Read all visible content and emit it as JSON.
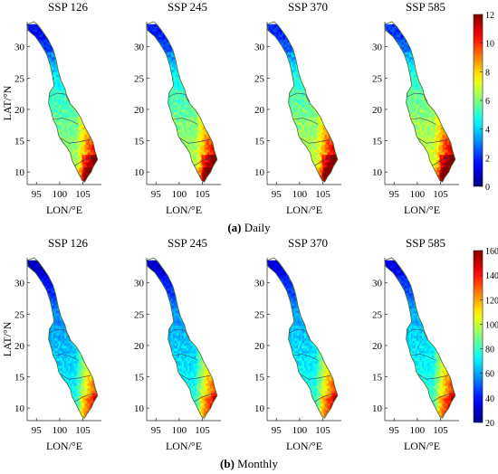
{
  "figure": {
    "rows": [
      {
        "id": "daily",
        "caption_letter": "(a)",
        "caption_text": " Daily",
        "panel_titles": [
          "SSP 126",
          "SSP 245",
          "SSP 370",
          "SSP 585"
        ],
        "colorbar": {
          "min": 0,
          "max": 12,
          "ticks": [
            "0",
            "2",
            "4",
            "6",
            "8",
            "10",
            "12"
          ]
        }
      },
      {
        "id": "monthly",
        "caption_letter": "(b)",
        "caption_text": " Monthly",
        "panel_titles": [
          "SSP 126",
          "SSP 245",
          "SSP 370",
          "SSP 585"
        ],
        "colorbar": {
          "min": 20,
          "max": 160,
          "ticks": [
            "20",
            "40",
            "60",
            "80",
            "100",
            "120",
            "140",
            "160"
          ]
        }
      }
    ],
    "axes": {
      "xlabel": "LON/°E",
      "ylabel": "LAT/°N",
      "xticks": [
        "95",
        "100",
        "105"
      ],
      "yticks": [
        "10",
        "15",
        "20",
        "25",
        "30"
      ],
      "xlim": [
        93,
        109
      ],
      "ylim": [
        8,
        34
      ]
    }
  },
  "chart_data": [
    {
      "type": "heatmap",
      "title": "SSP 126",
      "caption": "(a) Daily",
      "xlabel": "LON/°E",
      "ylabel": "LAT/°N",
      "xlim": [
        93,
        109
      ],
      "ylim": [
        8,
        34
      ],
      "color_range": [
        0,
        12
      ],
      "colormap": "jet"
    },
    {
      "type": "heatmap",
      "title": "SSP 245",
      "caption": "(a) Daily",
      "xlabel": "LON/°E",
      "ylabel": "",
      "xlim": [
        93,
        109
      ],
      "ylim": [
        8,
        34
      ],
      "color_range": [
        0,
        12
      ],
      "colormap": "jet"
    },
    {
      "type": "heatmap",
      "title": "SSP 370",
      "caption": "(a) Daily",
      "xlabel": "LON/°E",
      "ylabel": "",
      "xlim": [
        93,
        109
      ],
      "ylim": [
        8,
        34
      ],
      "color_range": [
        0,
        12
      ],
      "colormap": "jet"
    },
    {
      "type": "heatmap",
      "title": "SSP 585",
      "caption": "(a) Daily",
      "xlabel": "LON/°E",
      "ylabel": "",
      "xlim": [
        93,
        109
      ],
      "ylim": [
        8,
        34
      ],
      "color_range": [
        0,
        12
      ],
      "colormap": "jet"
    },
    {
      "type": "heatmap",
      "title": "SSP 126",
      "caption": "(b) Monthly",
      "xlabel": "LON/°E",
      "ylabel": "LAT/°N",
      "xlim": [
        93,
        109
      ],
      "ylim": [
        8,
        34
      ],
      "color_range": [
        20,
        160
      ],
      "colormap": "jet"
    },
    {
      "type": "heatmap",
      "title": "SSP 245",
      "caption": "(b) Monthly",
      "xlabel": "LON/°E",
      "ylabel": "",
      "xlim": [
        93,
        109
      ],
      "ylim": [
        8,
        34
      ],
      "color_range": [
        20,
        160
      ],
      "colormap": "jet"
    },
    {
      "type": "heatmap",
      "title": "SSP 370",
      "caption": "(b) Monthly",
      "xlabel": "LON/°E",
      "ylabel": "",
      "xlim": [
        93,
        109
      ],
      "ylim": [
        8,
        34
      ],
      "color_range": [
        20,
        160
      ],
      "colormap": "jet"
    },
    {
      "type": "heatmap",
      "title": "SSP 585",
      "caption": "(b) Monthly",
      "xlabel": "LON/°E",
      "ylabel": "",
      "xlim": [
        93,
        109
      ],
      "ylim": [
        8,
        34
      ],
      "color_range": [
        20,
        160
      ],
      "colormap": "jet"
    }
  ]
}
